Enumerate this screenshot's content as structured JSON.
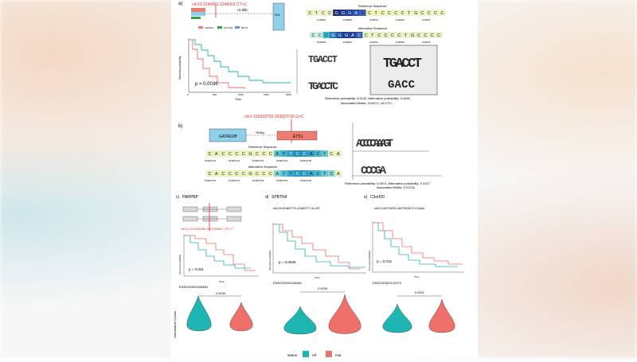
{
  "panels": {
    "a": {
      "label": "a)",
      "locus": "chr10:1246001-1246003 CT>C",
      "distance": "~2.3kb",
      "gene_box": "IDI2",
      "legend": [
        "CDKN2C",
        "NOTCH1",
        "RPL37"
      ],
      "survival": {
        "ylabel": "Survival probability",
        "xlabel": "Time",
        "pvalue": "p = 0.0036",
        "x_ticks": [
          "0",
          "500",
          "1000",
          "1500",
          "2000"
        ],
        "y_ticks": [
          "0.0",
          "0.25",
          "0.50",
          "0.75",
          "1.00"
        ]
      },
      "ref_title": "Reference Sequence",
      "alt_title": "Alternative Sequence",
      "ref_seq": [
        "C",
        "T",
        "C",
        "C",
        "G",
        "G",
        "G",
        "A",
        "C",
        "C",
        "T",
        "C",
        "C",
        "C",
        "C",
        "T",
        "G",
        "C",
        "C",
        "C",
        "C"
      ],
      "alt_seq": [
        "C",
        "C",
        "C",
        "G",
        "G",
        "G",
        "A",
        "C",
        "C",
        "T",
        "C",
        "C",
        "C",
        "C",
        "T",
        "G",
        "C",
        "C",
        "C",
        "C"
      ],
      "ref_coords": [
        "1245993",
        "1245996",
        "1246001",
        "1246006",
        "1246011"
      ],
      "alt_coords": [
        "1245993",
        "1245996",
        "1246001",
        "1246006",
        "1246011"
      ],
      "logo_ref": "TGACCT",
      "logo_alt": "TGACCTC",
      "logo_big_top": "TGACCT",
      "logo_big_bottom": "GACC",
      "probabilities": "Reference probability: 0.5142, Alternative probability: 0.4480",
      "motifs": "Associated Motifs: GGACC, ACCTC"
    },
    "b": {
      "label": "b)",
      "locus": "chr1:153923729-153923730 G>C",
      "distance": "~300bp",
      "gene1": "GATAD2B",
      "gene2": "ETS1",
      "ref_title": "Reference Sequence",
      "alt_title": "Alternative Sequence",
      "ref_seq": [
        "C",
        "A",
        "C",
        "C",
        "C",
        "C",
        "G",
        "C",
        "C",
        "C",
        "A",
        "T",
        "T",
        "C",
        "C",
        "A",
        "C",
        "T",
        "C",
        "A"
      ],
      "alt_seq": [
        "C",
        "A",
        "C",
        "C",
        "C",
        "C",
        "G",
        "C",
        "C",
        "C",
        "A",
        "T",
        "T",
        "C",
        "C",
        "A",
        "C",
        "T",
        "C",
        "A"
      ],
      "coords": [
        "153923719",
        "153923724",
        "153923729",
        "153923734",
        "153923739"
      ],
      "logo_top": "ACCCCAAAGT",
      "logo_bottom": "CCCGA",
      "probabilities": "Reference probability: 0.9974, Alternative probability: 0.3107",
      "motifs": "Associated Motifs: CCCGA"
    },
    "c": {
      "label": "c)",
      "gene": "PARPBP",
      "locus": "chr12:102156059-102156060 TTC>T",
      "pvalue": "p = 0.021",
      "ylabel": "Survival probability",
      "xlabel": "Time",
      "ensg": "ENSG00000185480",
      "violin_p": "0.0034"
    },
    "d": {
      "label": "d)",
      "gene": "SPBTN4",
      "locus": "chr19:40463770-40463771 A>AT",
      "pvalue": "p = 0.0036",
      "ylabel": "Survival probability",
      "xlabel": "Time",
      "ensg": "ENSG00000160460",
      "violin_p": "0.0034"
    },
    "e": {
      "label": "e)",
      "gene": "C3orf20",
      "locus": "chr3:14673495-14673496 G>CAAA",
      "pvalue": "p = 0.015",
      "ylabel": "Survival probability",
      "xlabel": "Time",
      "ensg": "ENSG00000131379",
      "violin_p": "0.0011"
    }
  },
  "violin_ylabel": "Normalized Counts",
  "legend": {
    "title": "status",
    "ref": "ref",
    "mut": "mut"
  },
  "colors": {
    "ref": "#1fb5b3",
    "mut": "#ef6f6a",
    "locus_red": "#e02b2b",
    "gene_blue": "#8fd0ea",
    "gene_red": "#ef7b72"
  }
}
